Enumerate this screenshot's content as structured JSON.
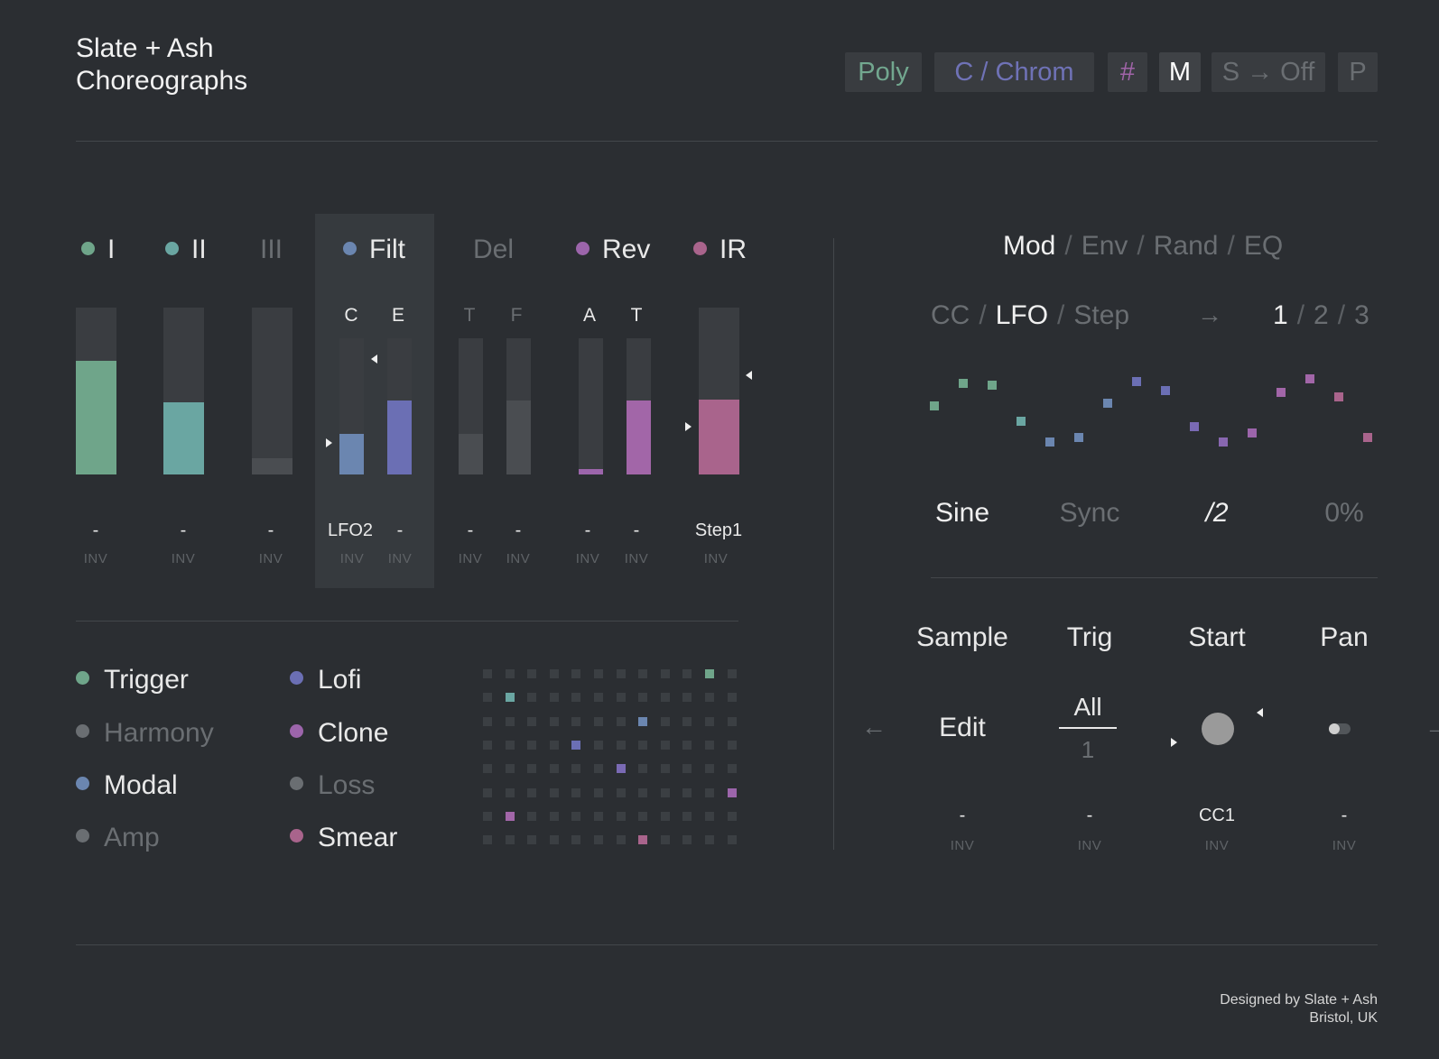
{
  "app": {
    "title_line1": "Slate + Ash",
    "title_line2": "Choreographs"
  },
  "toolbar": {
    "poly": "Poly",
    "scale": "C / Chrom",
    "sharp": "#",
    "mono": "M",
    "sustain": "S → Off",
    "p": "P"
  },
  "colors": {
    "green": "#6fa58a",
    "teal": "#6aa6a2",
    "blue": "#6b86b0",
    "indigo": "#6b6fb4",
    "purple": "#9c65ab",
    "pink": "#a9648c",
    "grey": "#505357"
  },
  "channels": [
    {
      "label": "I",
      "dot": "#6fa58a",
      "active": true
    },
    {
      "label": "II",
      "dot": "#6aa6a2",
      "active": true
    },
    {
      "label": "III",
      "active": false
    },
    {
      "label": "Filt",
      "dot": "#6b86b0",
      "active": true
    },
    {
      "label": "Del",
      "active": false
    },
    {
      "label": "Rev",
      "dot": "#9c65ab",
      "active": true
    },
    {
      "label": "IR",
      "dot": "#a9648c",
      "active": true
    }
  ],
  "subparams": {
    "filt_c": "C",
    "filt_e": "E",
    "del_t": "T",
    "del_f": "F",
    "rev_a": "A",
    "rev_t": "T"
  },
  "faders": [
    {
      "name": "I",
      "level": 0.68,
      "color": "#6fa58a"
    },
    {
      "name": "II",
      "level": 0.43,
      "color": "#6aa6a2"
    },
    {
      "name": "III",
      "level": 0.1,
      "color": "#4a4d51"
    },
    {
      "name": "Filt C",
      "level": 0.3,
      "color": "#6b86b0"
    },
    {
      "name": "Filt E",
      "level": 0.54,
      "color": "#6b6fb4"
    },
    {
      "name": "Del T",
      "level": 0.3,
      "color": "#4a4d51"
    },
    {
      "name": "Del F",
      "level": 0.54,
      "color": "#4a4d51"
    },
    {
      "name": "Rev A",
      "level": 0.04,
      "color": "#9c65ab"
    },
    {
      "name": "Rev T",
      "level": 0.54,
      "color": "#a266a8"
    },
    {
      "name": "IR",
      "level": 0.45,
      "color": "#a9648c"
    }
  ],
  "sources": {
    "s1": "-",
    "s2": "-",
    "s3": "-",
    "s4": "LFO2",
    "s5": "-",
    "s6": "-",
    "s7": "-",
    "s8": "-",
    "s9": "-",
    "s10": "Step1",
    "inv": "INV"
  },
  "legend": [
    {
      "label": "Trigger",
      "dot": "#6fa58a",
      "active": true
    },
    {
      "label": "Harmony",
      "dot": "#6a6e72",
      "active": false
    },
    {
      "label": "Modal",
      "dot": "#6b86b0",
      "active": true
    },
    {
      "label": "Amp",
      "dot": "#6a6e72",
      "active": false
    },
    {
      "label": "Lofi",
      "dot": "#6b6fb4",
      "active": true
    },
    {
      "label": "Clone",
      "dot": "#9c65ab",
      "active": true
    },
    {
      "label": "Loss",
      "dot": "#6a6e72",
      "active": false
    },
    {
      "label": "Smear",
      "dot": "#a9648c",
      "active": true
    }
  ],
  "matrix": {
    "cols": 12,
    "rows": 8,
    "active": [
      {
        "row": 0,
        "col": 10,
        "color": "#6fa58a"
      },
      {
        "row": 1,
        "col": 1,
        "color": "#6aa6a2"
      },
      {
        "row": 2,
        "col": 7,
        "color": "#6b86b0"
      },
      {
        "row": 3,
        "col": 4,
        "color": "#6b6fb4"
      },
      {
        "row": 4,
        "col": 6,
        "color": "#7a6ab4"
      },
      {
        "row": 5,
        "col": 11,
        "color": "#9c65ab"
      },
      {
        "row": 6,
        "col": 1,
        "color": "#a266a8"
      },
      {
        "row": 7,
        "col": 7,
        "color": "#a9648c"
      }
    ]
  },
  "modpanel": {
    "tabs": {
      "mod": "Mod",
      "env": "Env",
      "rand": "Rand",
      "eq": "EQ",
      "sep": "/"
    },
    "sources": {
      "cc": "CC",
      "lfo": "LFO",
      "step": "Step"
    },
    "arrow": "→",
    "pages": {
      "p1": "1",
      "p2": "2",
      "p3": "3"
    },
    "lfo_points": [
      0.35,
      0.6,
      0.58,
      0.18,
      -0.05,
      0.0,
      0.38,
      0.62,
      0.52,
      0.12,
      -0.05,
      0.05,
      0.5,
      0.65,
      0.45,
      0.0
    ],
    "shape": "Sine",
    "sync": "Sync",
    "rate": "/2",
    "phase": "0%"
  },
  "sampler": {
    "headers": {
      "sample": "Sample",
      "trig": "Trig",
      "start": "Start",
      "pan": "Pan"
    },
    "edit": "Edit",
    "trig_all": "All",
    "trig_num": "1",
    "nav_prev": "←",
    "nav_next": "→",
    "sources": {
      "sample": "-",
      "trig": "-",
      "start": "CC1",
      "pan": "-"
    },
    "inv": "INV"
  },
  "footer": {
    "line1": "Designed by Slate + Ash",
    "line2": "Bristol, UK"
  }
}
